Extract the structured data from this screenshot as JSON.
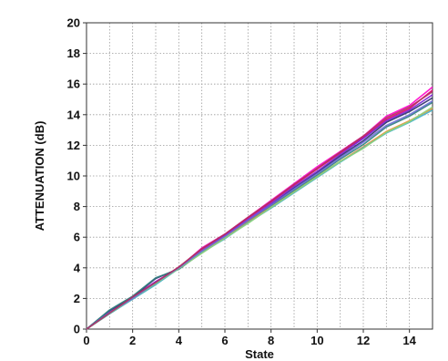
{
  "chart_data": {
    "type": "line",
    "title": "",
    "xlabel": "State",
    "ylabel": "ATTENUATION (dB)",
    "xlim": [
      0,
      15
    ],
    "ylim": [
      0,
      20
    ],
    "x_ticks": [
      "0",
      "2",
      "4",
      "6",
      "8",
      "10",
      "12",
      "14"
    ],
    "y_ticks": [
      "0",
      "2",
      "4",
      "6",
      "8",
      "10",
      "12",
      "14",
      "16",
      "18",
      "20"
    ],
    "grid": true,
    "legend": "none",
    "x": [
      0,
      1,
      2,
      3,
      4,
      5,
      6,
      7,
      8,
      9,
      10,
      11,
      12,
      13,
      14,
      15
    ],
    "series": [
      {
        "color": "#ff00cc",
        "values": [
          0,
          1.1,
          2.1,
          3.1,
          4.0,
          5.3,
          6.2,
          7.3,
          8.4,
          9.5,
          10.6,
          11.6,
          12.6,
          13.9,
          14.6,
          15.8
        ]
      },
      {
        "color": "#e0006a",
        "values": [
          0,
          1.05,
          2.05,
          3.0,
          4.05,
          5.2,
          6.15,
          7.25,
          8.3,
          9.4,
          10.45,
          11.5,
          12.5,
          13.7,
          14.4,
          15.6
        ]
      },
      {
        "color": "#7a1fd6",
        "values": [
          0,
          1.1,
          2.05,
          3.1,
          3.95,
          5.1,
          6.1,
          7.15,
          8.2,
          9.3,
          10.3,
          11.4,
          12.45,
          13.6,
          14.3,
          15.3
        ]
      },
      {
        "color": "#2a2a6a",
        "values": [
          0,
          1.2,
          2.1,
          3.3,
          3.95,
          5.05,
          6.0,
          7.05,
          8.1,
          9.2,
          10.2,
          11.3,
          12.3,
          13.5,
          14.2,
          15.1
        ]
      },
      {
        "color": "#2e7d7d",
        "values": [
          0,
          1.25,
          2.15,
          3.35,
          3.9,
          5.0,
          5.95,
          7.0,
          8.0,
          9.05,
          10.05,
          11.1,
          12.05,
          13.2,
          13.9,
          14.8
        ]
      },
      {
        "color": "#f08a2b",
        "values": [
          0,
          1.0,
          2.0,
          2.95,
          4.0,
          5.05,
          6.0,
          7.0,
          7.95,
          8.95,
          9.95,
          10.95,
          11.9,
          12.9,
          13.6,
          14.4
        ]
      },
      {
        "color": "#3fb0c8",
        "values": [
          0,
          1.0,
          1.95,
          2.9,
          3.95,
          5.0,
          5.9,
          6.95,
          7.9,
          8.9,
          9.9,
          10.9,
          11.85,
          12.8,
          13.5,
          14.3
        ]
      },
      {
        "color": "#8fd17a",
        "values": [
          0,
          1.05,
          2.0,
          3.0,
          3.95,
          4.95,
          5.95,
          6.9,
          7.95,
          8.95,
          9.95,
          10.95,
          11.8,
          12.85,
          13.55,
          14.5
        ]
      },
      {
        "color": "#6b6bd6",
        "values": [
          0,
          1.1,
          2.0,
          3.05,
          4.0,
          5.1,
          6.05,
          7.1,
          8.1,
          9.15,
          10.15,
          11.2,
          12.2,
          13.3,
          14.0,
          14.9
        ]
      },
      {
        "color": "#b03060",
        "values": [
          0,
          1.05,
          2.1,
          3.05,
          4.05,
          5.25,
          6.2,
          7.3,
          8.35,
          9.45,
          10.5,
          11.55,
          12.6,
          13.8,
          14.5,
          15.5
        ]
      }
    ]
  }
}
